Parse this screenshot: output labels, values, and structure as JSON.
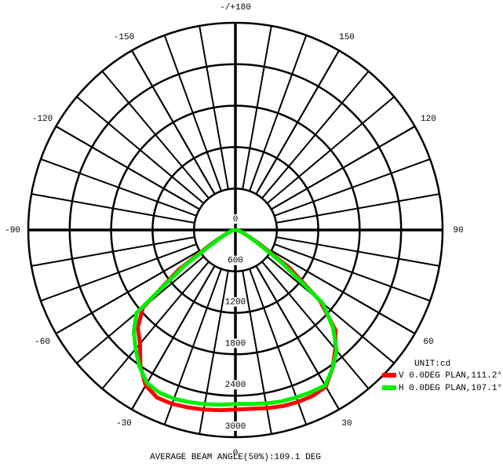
{
  "chart_data": {
    "type": "polar",
    "rlim": [
      0,
      3000
    ],
    "rticks": [
      0,
      600,
      1200,
      1800,
      2400,
      3000
    ],
    "angle_ticks": [
      {
        "value": 180,
        "label": "-/+180"
      },
      150,
      120,
      90,
      60,
      30,
      0,
      -30,
      -60,
      -90,
      -120,
      -150
    ],
    "legend_title": "UNIT:cd",
    "annotation": "AVERAGE BEAM ANGLE(50%):109.1 DEG",
    "x": [
      -90,
      -85,
      -80,
      -75,
      -70,
      -65,
      -60,
      -55,
      -50,
      -45,
      -40,
      -35,
      -30,
      -25,
      -20,
      -15,
      -10,
      -5,
      0,
      5,
      10,
      15,
      20,
      25,
      30,
      35,
      40,
      45,
      50,
      55,
      60,
      65,
      70,
      75,
      80,
      85,
      90
    ],
    "series": [
      {
        "name": "V 0.0DEG PLAN,111.2°",
        "color": "#ff0000",
        "values": [
          0,
          20,
          40,
          70,
          110,
          190,
          400,
          1000,
          1750,
          2000,
          2150,
          2400,
          2600,
          2680,
          2680,
          2660,
          2640,
          2620,
          2600,
          2600,
          2620,
          2640,
          2650,
          2650,
          2620,
          2450,
          2250,
          2050,
          1600,
          950,
          400,
          190,
          110,
          70,
          40,
          20,
          0
        ]
      },
      {
        "name": "H 0.0DEG PLAN,107.1°",
        "color": "#00ee00",
        "values": [
          0,
          20,
          40,
          70,
          110,
          180,
          350,
          900,
          1870,
          2080,
          2250,
          2420,
          2560,
          2600,
          2600,
          2580,
          2560,
          2540,
          2520,
          2530,
          2550,
          2570,
          2580,
          2590,
          2600,
          2450,
          2280,
          2000,
          1650,
          800,
          350,
          180,
          110,
          70,
          40,
          20,
          0
        ]
      }
    ]
  }
}
